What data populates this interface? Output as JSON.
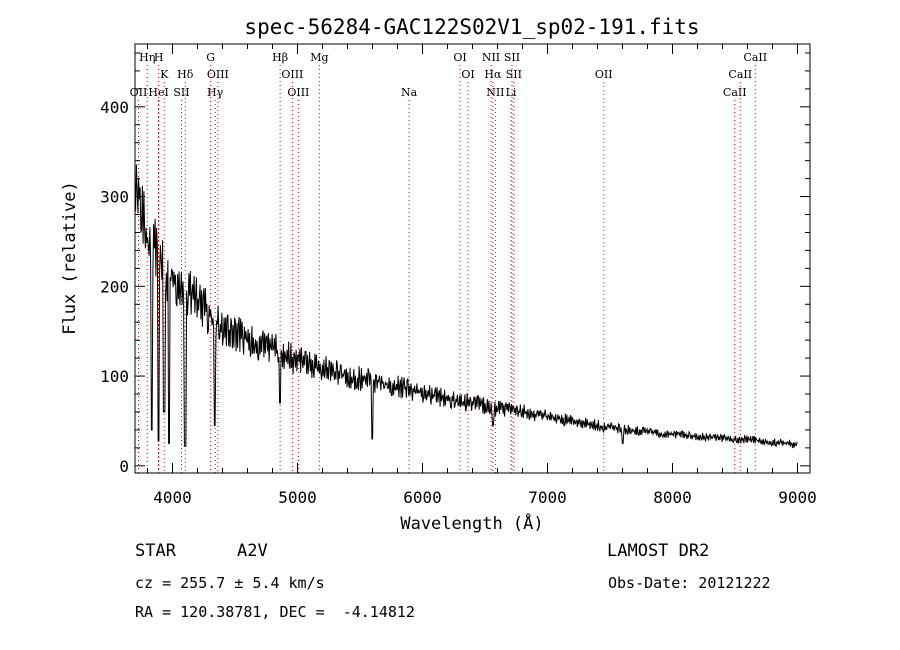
{
  "chart_data": {
    "type": "line",
    "title": "spec-56284-GAC122S02V1_sp02-191.fits",
    "xlabel": "Wavelength (Å)",
    "ylabel": "Flux (relative)",
    "xlim": [
      3700,
      9100
    ],
    "ylim": [
      -8,
      470
    ],
    "xticks": [
      4000,
      5000,
      6000,
      7000,
      8000,
      9000
    ],
    "yticks": [
      0,
      100,
      200,
      300,
      400
    ],
    "grid": false,
    "line_color": "#000000",
    "marker_color": "#cc0000",
    "spectrum": {
      "x": [
        3700,
        3750,
        3800,
        3850,
        3900,
        3950,
        4000,
        4050,
        4100,
        4150,
        4200,
        4250,
        4300,
        4350,
        4400,
        4450,
        4500,
        4550,
        4600,
        4650,
        4700,
        4750,
        4800,
        4850,
        4900,
        4950,
        5000,
        5100,
        5200,
        5300,
        5400,
        5500,
        5600,
        5700,
        5800,
        5900,
        6000,
        6100,
        6200,
        6300,
        6400,
        6500,
        6600,
        6700,
        6800,
        6900,
        7000,
        7200,
        7400,
        7600,
        7800,
        8000,
        8200,
        8400,
        8600,
        8800,
        9000
      ],
      "y": [
        310,
        300,
        255,
        245,
        230,
        215,
        205,
        200,
        195,
        190,
        185,
        175,
        168,
        160,
        155,
        150,
        147,
        145,
        140,
        138,
        135,
        132,
        130,
        128,
        123,
        120,
        118,
        112,
        108,
        104,
        100,
        97,
        95,
        92,
        88,
        85,
        82,
        78,
        75,
        72,
        70,
        67,
        64,
        62,
        60,
        57,
        55,
        50,
        45,
        41,
        37,
        35,
        33,
        31,
        29,
        27,
        23
      ]
    },
    "absorption_dips": [
      {
        "x": 3835,
        "y": 40
      },
      {
        "x": 3889,
        "y": 28
      },
      {
        "x": 3933,
        "y": 60
      },
      {
        "x": 3970,
        "y": 25
      },
      {
        "x": 4101,
        "y": 22
      },
      {
        "x": 4340,
        "y": 45
      },
      {
        "x": 4861,
        "y": 70
      },
      {
        "x": 5600,
        "y": 30
      },
      {
        "x": 6563,
        "y": 45
      },
      {
        "x": 7600,
        "y": 25
      }
    ],
    "marker_lines": [
      {
        "x": 3728,
        "label": "OII",
        "row": 3
      },
      {
        "x": 3798,
        "label": "Hη",
        "row": 1
      },
      {
        "x": 3889,
        "label": "H",
        "row": 1
      },
      {
        "x": 3934,
        "label": "K",
        "row": 2
      },
      {
        "x": 3889,
        "label": "HeI",
        "row": 3
      },
      {
        "x": 4072,
        "label": "SII",
        "row": 3
      },
      {
        "x": 4102,
        "label": "Hδ",
        "row": 2
      },
      {
        "x": 4305,
        "label": "G",
        "row": 1
      },
      {
        "x": 4363,
        "label": "OIII",
        "row": 2
      },
      {
        "x": 4341,
        "label": "Hγ",
        "row": 3
      },
      {
        "x": 4861,
        "label": "Hβ",
        "row": 1
      },
      {
        "x": 4959,
        "label": "OIII",
        "row": 2
      },
      {
        "x": 5007,
        "label": "OIII",
        "row": 3
      },
      {
        "x": 5175,
        "label": "Mg",
        "row": 1
      },
      {
        "x": 5893,
        "label": "Na",
        "row": 3
      },
      {
        "x": 6300,
        "label": "OI",
        "row": 1
      },
      {
        "x": 6364,
        "label": "OI",
        "row": 2
      },
      {
        "x": 6548,
        "label": "NII",
        "row": 1
      },
      {
        "x": 6583,
        "label": "NII",
        "row": 3
      },
      {
        "x": 6563,
        "label": "Hα",
        "row": 2
      },
      {
        "x": 6716,
        "label": "SII",
        "row": 1
      },
      {
        "x": 6731,
        "label": "SII",
        "row": 2
      },
      {
        "x": 6708,
        "label": "Li",
        "row": 3
      },
      {
        "x": 7450,
        "label": "OII",
        "row": 2
      },
      {
        "x": 8498,
        "label": "CaII",
        "row": 3
      },
      {
        "x": 8542,
        "label": "CaII",
        "row": 2
      },
      {
        "x": 8662,
        "label": "CaII",
        "row": 1
      }
    ]
  },
  "info": {
    "object_class": "STAR",
    "subclass": "A2V",
    "survey": "LAMOST DR2",
    "cz": "cz = 255.7 ± 5.4 km/s",
    "obs_date": "Obs-Date: 20121222",
    "coords": "RA = 120.38781, DEC =  -4.14812"
  }
}
